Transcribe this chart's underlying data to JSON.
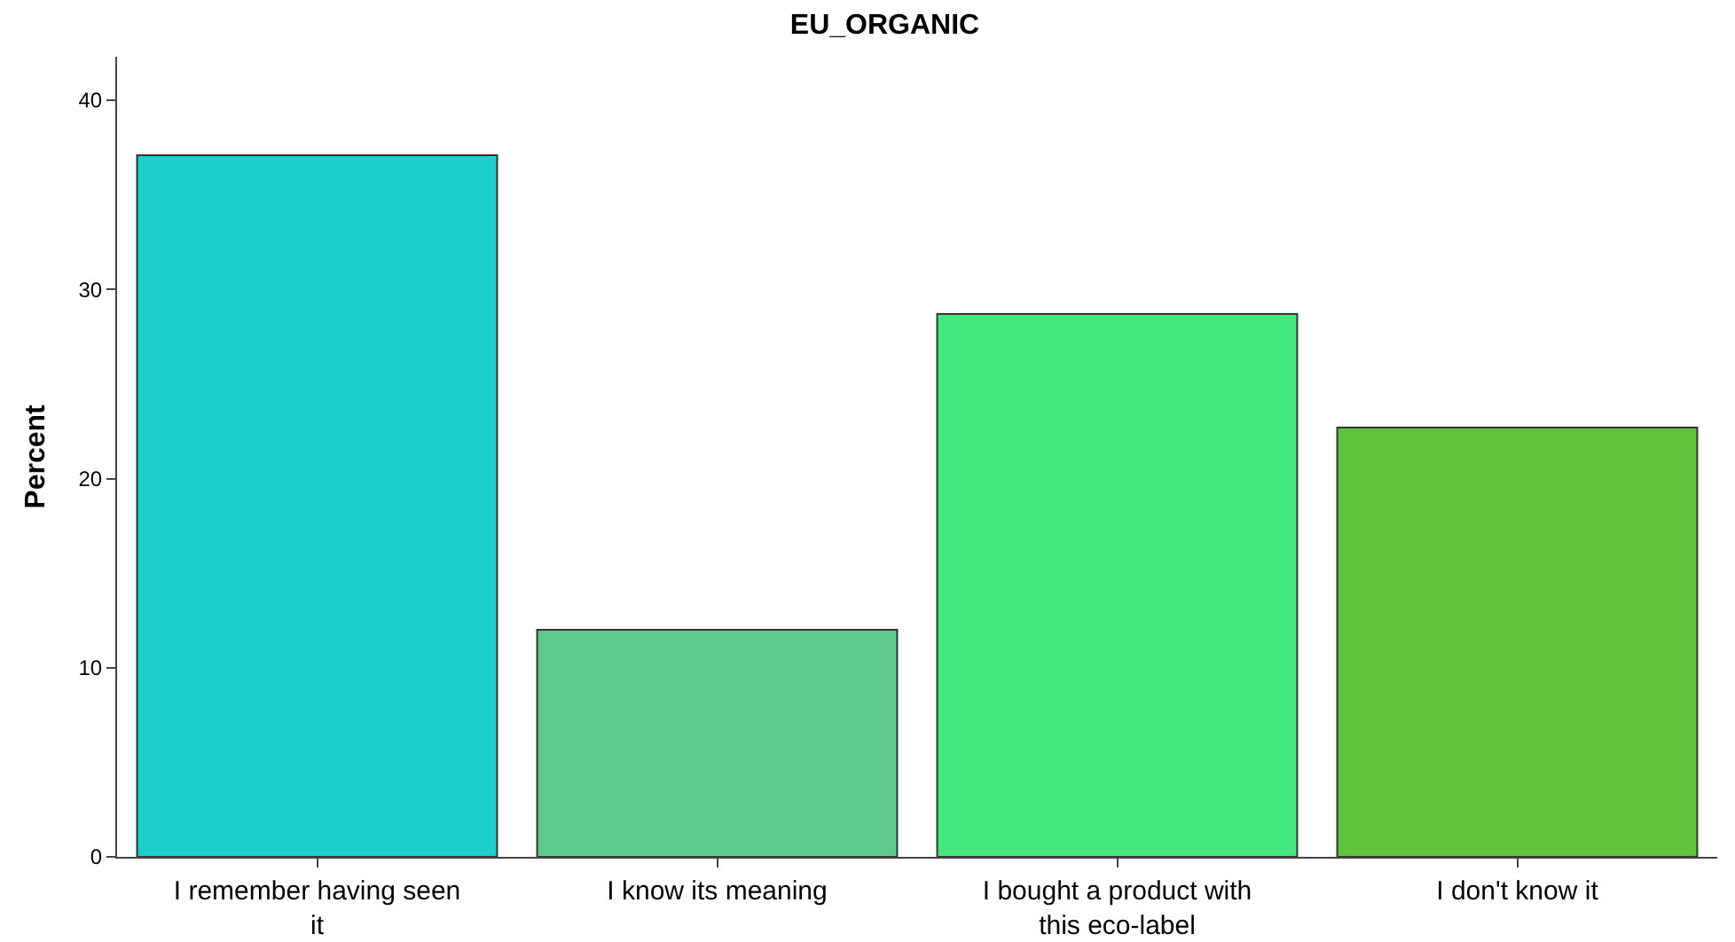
{
  "chart_data": {
    "type": "bar",
    "title": "EU_ORGANIC",
    "ylabel": "Percent",
    "categories": [
      "I remember having seen it",
      "I know its meaning",
      "I bought a product with this eco-label",
      "I don't know it"
    ],
    "values": [
      37.1,
      12.0,
      28.7,
      22.7
    ],
    "colors": [
      "#1ccece",
      "#5dc98b",
      "#43e97f",
      "#5ec43a"
    ],
    "ylim": [
      0,
      42.3
    ],
    "yticks": [
      0,
      10,
      20,
      30,
      40
    ],
    "grid": false
  }
}
